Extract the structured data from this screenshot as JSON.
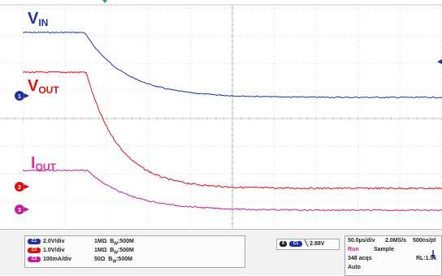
{
  "trace_labels": {
    "vin": {
      "main": "V",
      "sub": "IN"
    },
    "vout": {
      "main": "V",
      "sub": "OUT"
    },
    "iout": {
      "main": "I",
      "sub": "OUT"
    }
  },
  "channel_markers": [
    "1",
    "2",
    "3"
  ],
  "channels": [
    {
      "badge": "C1",
      "scale": "2.0V/div",
      "impedance": "1MΩ",
      "bandwidth": "B",
      "bandwidth_sub": "W",
      "bandwidth_value": ":500M",
      "color": "#2233a0"
    },
    {
      "badge": "C2",
      "scale": "1.0V/div",
      "impedance": "1MΩ",
      "bandwidth": "B",
      "bandwidth_sub": "W",
      "bandwidth_value": ":500M",
      "color": "#dd1111"
    },
    {
      "badge": "C3",
      "scale": "100mA/div",
      "impedance": "50Ω",
      "bandwidth": "B",
      "bandwidth_sub": "W",
      "bandwidth_value": ":500M",
      "color": "#c0209a"
    }
  ],
  "trigger": {
    "badge_a": "A",
    "badge_ch": "C1",
    "slope_symbol": "╲",
    "level": "2.88V"
  },
  "acquisition": {
    "timebase": "50.0µs/div",
    "sample_rate": "2.0MS/s",
    "resolution": "500ns/pt",
    "state": "Run",
    "mode": "Sample",
    "acqs": "348 acqs",
    "record_length": "RL:1.0k",
    "trigger_mode": "Auto"
  },
  "colors": {
    "vin": "#2233a0",
    "vout": "#dd1111",
    "iout": "#c0209a",
    "grid": "#b8b8b8",
    "trigger_marker": "#2a9a80"
  }
}
